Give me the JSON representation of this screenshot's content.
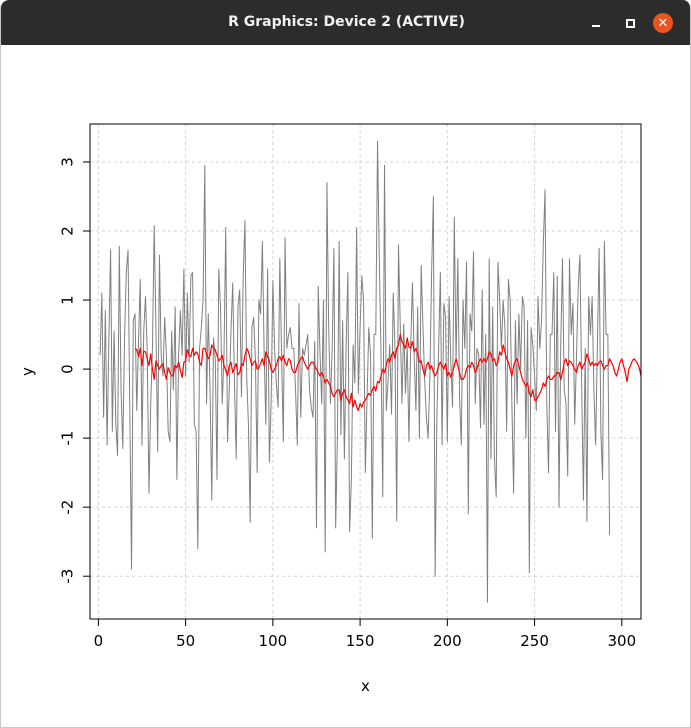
{
  "window": {
    "title": "R Graphics: Device 2 (ACTIVE)",
    "controls": {
      "minimize_icon": "minimize-icon",
      "maximize_icon": "maximize-icon",
      "close_icon": "close-icon"
    },
    "accent_close_color": "#e95420"
  },
  "chart_data": {
    "type": "line",
    "title": "",
    "xlabel": "x",
    "ylabel": "y",
    "xlim": [
      -4.8,
      311
    ],
    "ylim": [
      -3.62,
      3.55
    ],
    "xticks": [
      "0",
      "50",
      "100",
      "150",
      "200",
      "250",
      "300"
    ],
    "xtick_values": [
      0,
      50,
      100,
      150,
      200,
      250,
      300
    ],
    "yticks": [
      "-3",
      "-2",
      "-1",
      "0",
      "1",
      "2",
      "3"
    ],
    "ytick_values": [
      -3,
      -2,
      -1,
      0,
      1,
      2,
      3
    ],
    "grid": true,
    "series": [
      {
        "color": "#808080",
        "x_start": 1,
        "values": [
          0.2,
          1.1,
          -0.7,
          0.85,
          -1.1,
          0.4,
          1.73,
          -0.9,
          0.55,
          -0.8,
          -1.25,
          1.78,
          -0.3,
          -1.15,
          0.45,
          1.4,
          1.72,
          -0.55,
          -2.9,
          0.7,
          0.8,
          -0.6,
          0.4,
          1.3,
          -1.1,
          0.55,
          1.05,
          0.25,
          -1.8,
          -0.5,
          0.3,
          2.08,
          0.6,
          -1.2,
          1.65,
          0.2,
          -0.1,
          0.75,
          0.2,
          -0.9,
          -1.05,
          0.55,
          -0.3,
          0.9,
          -1.6,
          0.2,
          0.85,
          0.2,
          1.45,
          -0.1,
          1.1,
          0.1,
          1.35,
          1.4,
          -0.8,
          -0.9,
          -2.6,
          0.3,
          0.6,
          1.0,
          2.95,
          -0.5,
          0.8,
          -0.3,
          -1.9,
          0.45,
          0.15,
          -1.6,
          1.45,
          0.9,
          -0.5,
          0.2,
          2.05,
          -1.05,
          -0.3,
          0.55,
          1.25,
          -0.2,
          -1.3,
          0.9,
          1.15,
          -0.4,
          1.35,
          2.15,
          -0.1,
          -0.8,
          -2.22,
          0.6,
          0.75,
          0.15,
          -1.5,
          1.0,
          0.8,
          1.85,
          0.25,
          -0.8,
          1.45,
          -1.35,
          -0.5,
          1.28,
          0.3,
          -0.2,
          -0.55,
          1.6,
          0.2,
          -1.05,
          1.9,
          0.3,
          0.5,
          0.6,
          0.3,
          0.3,
          -0.3,
          -1.1,
          0.95,
          -0.7,
          0.3,
          0.2,
          0.35,
          0.5,
          -0.3,
          -0.55,
          -0.7,
          0.4,
          -2.3,
          1.2,
          0.25,
          -0.5,
          1.0,
          -2.65,
          2.7,
          0.6,
          -0.5,
          0.3,
          1.75,
          -2.3,
          -1.0,
          1.85,
          -0.95,
          0.7,
          -1.3,
          0.35,
          1.4,
          -2.35,
          -1.6,
          0.35,
          -0.2,
          2.05,
          -0.35,
          0.6,
          1.35,
          1.0,
          -1.5,
          -0.4,
          0.6,
          0.2,
          -2.45,
          0.5,
          0.5,
          3.3,
          1.6,
          0.2,
          -1.85,
          2.95,
          -0.6,
          -0.2,
          0.35,
          -0.65,
          1.1,
          0.3,
          -2.2,
          1.8,
          0.65,
          -0.5,
          0.65,
          -0.35,
          0.35,
          -1.05,
          0.35,
          1.25,
          0.2,
          -0.6,
          0.9,
          -1.0,
          1.5,
          0.65,
          -0.15,
          -0.7,
          -1.0,
          -0.1,
          1.4,
          2.5,
          -3.0,
          -0.7,
          0.3,
          1.4,
          -1.1,
          0.95,
          0.75,
          -1.05,
          1.05,
          0.1,
          -0.55,
          2.2,
          0.1,
          1.6,
          -0.4,
          -1.1,
          1.0,
          0.3,
          1.55,
          -2.1,
          0.8,
          0.55,
          1.7,
          -0.5,
          0.3,
          0.2,
          -0.85,
          1.15,
          -0.8,
          0.5,
          -3.38,
          1.6,
          -1.3,
          0.9,
          -1.3,
          -1.85,
          1.55,
          1.0,
          0.3,
          1.0,
          0.6,
          -0.9,
          1.3,
          1.0,
          -0.5,
          -1.8,
          0.7,
          -0.5,
          0.8,
          0.0,
          1.05,
          0.9,
          -1.0,
          0.7,
          -2.95,
          0.6,
          0.35,
          -0.1,
          -0.6,
          1.05,
          0.3,
          0.7,
          1.8,
          2.6,
          -0.5,
          -1.5,
          0.5,
          0.5,
          1.4,
          -0.9,
          1.35,
          -2.0,
          0.35,
          1.6,
          -0.3,
          -0.5,
          -1.55,
          1.6,
          0.5,
          0.95,
          -0.8,
          0.15,
          1.2,
          1.65,
          -0.25,
          -1.9,
          0.3,
          -2.2,
          1.05,
          0.5,
          1.05,
          -0.3,
          -1.1,
          0.35,
          1.75,
          -0.9,
          -1.6,
          1.85,
          0.5,
          0.5,
          -2.4
        ]
      },
      {
        "color": "#ff0000",
        "x_start": 21,
        "values": [
          0.3,
          0.28,
          0.18,
          0.3,
          0.05,
          0.26,
          0.25,
          0.15,
          0.05,
          0.22,
          0.0,
          -0.15,
          0.12,
          0.05,
          0.0,
          0.05,
          0.08,
          -0.05,
          -0.15,
          0.02,
          -0.05,
          -0.1,
          -0.08,
          0.05,
          0.02,
          0.1,
          -0.02,
          -0.12,
          0.1,
          0.12,
          0.28,
          0.2,
          0.18,
          0.3,
          0.2,
          0.25,
          0.22,
          0.1,
          0.05,
          0.3,
          0.3,
          0.22,
          0.15,
          0.2,
          0.35,
          0.3,
          0.28,
          0.2,
          0.12,
          0.15,
          0.2,
          0.05,
          -0.02,
          -0.1,
          0.05,
          0.1,
          -0.05,
          0.02,
          0.08,
          -0.08,
          -0.05,
          0.08,
          0.05,
          0.2,
          0.3,
          0.25,
          0.15,
          0.05,
          0.1,
          0.12,
          0.0,
          0.02,
          0.08,
          0.15,
          0.05,
          0.25,
          0.18,
          0.12,
          0.0,
          -0.05,
          0.0,
          0.05,
          0.15,
          0.18,
          0.12,
          0.2,
          0.1,
          0.05,
          0.15,
          0.12,
          0.0,
          -0.05,
          -0.05,
          0.05,
          0.1,
          0.15,
          0.18,
          0.1,
          0.05,
          0.0,
          0.05,
          0.1,
          0.1,
          0.05,
          0.0,
          -0.05,
          -0.1,
          -0.05,
          -0.1,
          -0.2,
          -0.15,
          -0.2,
          -0.25,
          -0.35,
          -0.4,
          -0.35,
          -0.3,
          -0.3,
          -0.45,
          -0.35,
          -0.3,
          -0.4,
          -0.45,
          -0.5,
          -0.35,
          -0.55,
          -0.45,
          -0.55,
          -0.6,
          -0.5,
          -0.55,
          -0.48,
          -0.45,
          -0.4,
          -0.35,
          -0.38,
          -0.3,
          -0.25,
          -0.32,
          -0.18,
          -0.2,
          -0.1,
          0.0,
          -0.05,
          0.05,
          0.15,
          0.1,
          0.2,
          0.25,
          0.15,
          0.3,
          0.35,
          0.5,
          0.4,
          0.35,
          0.3,
          0.45,
          0.32,
          0.3,
          0.4,
          0.25,
          0.3,
          0.22,
          0.1,
          0.12,
          0.0,
          -0.1,
          0.05,
          0.1,
          0.0,
          0.05,
          -0.05,
          -0.1,
          -0.05,
          0.05,
          0.1,
          0.05,
          0.0,
          0.08,
          -0.1,
          -0.05,
          -0.12,
          -0.05,
          0.05,
          0.15,
          0.05,
          -0.05,
          -0.15,
          -0.15,
          -0.1,
          0.0,
          0.05,
          0.02,
          0.1,
          0.05,
          -0.05,
          0.0,
          0.1,
          0.15,
          0.1,
          0.15,
          0.1,
          0.15,
          0.25,
          0.22,
          0.12,
          0.15,
          0.05,
          0.1,
          0.25,
          0.2,
          0.35,
          0.25,
          0.15,
          0.1,
          0.0,
          -0.1,
          0.05,
          0.12,
          0.15,
          0.05,
          -0.05,
          -0.15,
          -0.2,
          -0.25,
          -0.2,
          -0.35,
          -0.4,
          -0.3,
          -0.45,
          -0.45,
          -0.4,
          -0.35,
          -0.3,
          -0.2,
          -0.25,
          -0.15,
          -0.1,
          -0.15,
          -0.15,
          -0.1,
          -0.1,
          -0.05,
          -0.05,
          -0.15,
          -0.05,
          0.1,
          0.15,
          0.05,
          0.12,
          0.1,
          0.05,
          0.0,
          -0.05,
          0.05,
          0.1,
          0.0,
          0.05,
          0.1,
          0.22,
          0.15,
          0.05,
          0.1,
          0.05,
          0.08,
          0.05,
          0.1,
          0.12,
          0.05,
          0.0,
          0.05,
          0.05,
          0.15,
          0.1,
          0.05,
          -0.05,
          -0.1,
          0.0,
          0.1,
          0.15,
          0.05,
          -0.05,
          -0.18,
          0.0,
          0.05,
          0.12,
          0.15,
          0.12,
          0.08,
          0.02,
          -0.1
        ]
      }
    ]
  }
}
